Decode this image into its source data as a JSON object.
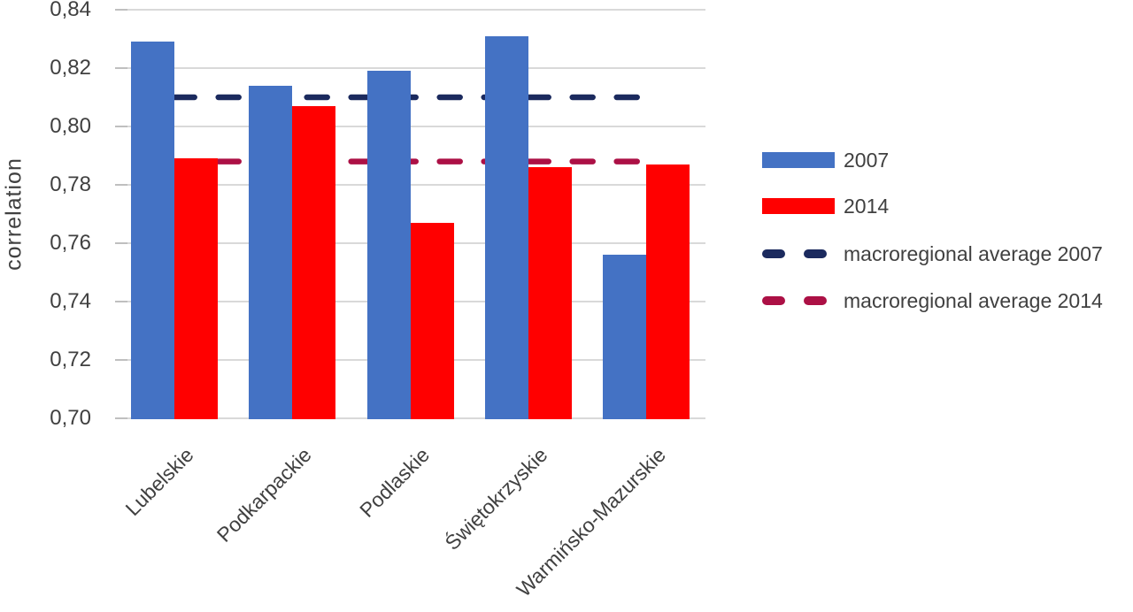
{
  "chart_data": {
    "type": "bar",
    "title": "",
    "xlabel": "",
    "ylabel": "correlation",
    "categories": [
      "Lubelskie",
      "Podkarpackie",
      "Podlaskie",
      "Świętokrzyskie",
      "Warmińsko-Mazurskie"
    ],
    "series": [
      {
        "name": "2007",
        "kind": "bar",
        "color": "#4472C4",
        "values": [
          0.829,
          0.814,
          0.819,
          0.831,
          0.756
        ]
      },
      {
        "name": "2014",
        "kind": "bar",
        "color": "#FF0000",
        "values": [
          0.789,
          0.807,
          0.767,
          0.786,
          0.787
        ]
      },
      {
        "name": "macroregional average 2007",
        "kind": "dashed-line",
        "color": "#1B2A5E",
        "value": 0.81
      },
      {
        "name": "macroregional average 2014",
        "kind": "dashed-line",
        "color": "#AC1045",
        "value": 0.788
      }
    ],
    "ylim": [
      0.7,
      0.84
    ],
    "ytick_step": 0.02,
    "ytick_labels": [
      "0,70",
      "0,72",
      "0,74",
      "0,76",
      "0,78",
      "0,80",
      "0,82",
      "0,84"
    ],
    "decimal_separator": ",",
    "grid": true,
    "legend_position": "right",
    "colors": {
      "gridline": "#D9D9D9",
      "tick": "#BFBFBF",
      "axis_text": "#404040"
    }
  }
}
